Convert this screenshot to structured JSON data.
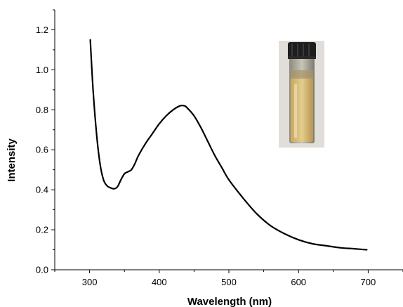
{
  "chart_data": {
    "type": "line",
    "xlabel": "Wavelength (nm)",
    "ylabel": "Intensity",
    "xlim": [
      250,
      750
    ],
    "ylim": [
      0.0,
      1.3
    ],
    "xticks": [
      300,
      400,
      500,
      600,
      700
    ],
    "yticks": [
      0.0,
      0.2,
      0.4,
      0.6,
      0.8,
      1.0,
      1.2
    ],
    "xtick_labels": [
      "300",
      "400",
      "500",
      "600",
      "700"
    ],
    "ytick_labels": [
      "0.0",
      "0.2",
      "0.4",
      "0.6",
      "0.8",
      "1.0",
      "1.2"
    ],
    "grid": false,
    "series": [
      {
        "color": "#000000",
        "x": [
          301,
          305,
          310,
          315,
          320,
          325,
          330,
          335,
          340,
          345,
          350,
          355,
          360,
          365,
          370,
          380,
          390,
          400,
          410,
          420,
          430,
          436,
          440,
          450,
          460,
          470,
          480,
          490,
          500,
          520,
          540,
          560,
          580,
          600,
          620,
          640,
          660,
          680,
          698
        ],
        "y": [
          1.15,
          0.9,
          0.68,
          0.53,
          0.45,
          0.42,
          0.41,
          0.405,
          0.415,
          0.45,
          0.48,
          0.49,
          0.5,
          0.53,
          0.57,
          0.63,
          0.68,
          0.73,
          0.77,
          0.8,
          0.82,
          0.82,
          0.81,
          0.77,
          0.71,
          0.64,
          0.57,
          0.51,
          0.45,
          0.36,
          0.28,
          0.22,
          0.18,
          0.15,
          0.13,
          0.12,
          0.11,
          0.105,
          0.1
        ]
      }
    ],
    "inset_image": {
      "description_icon": "vial-photo"
    }
  }
}
